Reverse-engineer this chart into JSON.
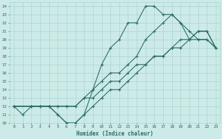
{
  "xlabel": "Humidex (Indice chaleur)",
  "background_color": "#cceae7",
  "grid_color": "#aad4d0",
  "line_color": "#2a6b63",
  "xlim": [
    -0.5,
    23.5
  ],
  "ylim": [
    10,
    24.5
  ],
  "xticks": [
    0,
    1,
    2,
    3,
    4,
    5,
    6,
    7,
    8,
    9,
    10,
    11,
    12,
    13,
    14,
    15,
    16,
    17,
    18,
    19,
    20,
    21,
    22,
    23
  ],
  "yticks": [
    10,
    11,
    12,
    13,
    14,
    15,
    16,
    17,
    18,
    19,
    20,
    21,
    22,
    23,
    24
  ],
  "lines": [
    {
      "x": [
        0,
        1,
        2,
        3,
        4,
        5,
        6,
        7,
        8,
        9,
        10,
        11,
        12,
        13,
        14,
        15,
        16,
        17,
        18,
        19,
        20,
        21,
        22,
        23
      ],
      "y": [
        12,
        11,
        12,
        12,
        12,
        11,
        10,
        10,
        11,
        14,
        17,
        19,
        20,
        22,
        22,
        24,
        24,
        23,
        23,
        22,
        20,
        20,
        20,
        19
      ]
    },
    {
      "x": [
        0,
        2,
        3,
        4,
        5,
        6,
        7,
        8,
        9,
        10,
        11,
        12,
        13,
        14,
        15,
        16,
        17,
        18,
        19,
        20,
        21,
        22,
        23
      ],
      "y": [
        12,
        12,
        12,
        12,
        12,
        12,
        12,
        13,
        14,
        15,
        16,
        16,
        17,
        18,
        20,
        21,
        22,
        23,
        22,
        21,
        20,
        20,
        19
      ]
    },
    {
      "x": [
        0,
        2,
        3,
        4,
        5,
        6,
        7,
        8,
        9,
        10,
        11,
        12,
        13,
        14,
        15,
        16,
        17,
        18,
        19,
        20,
        21,
        22,
        23
      ],
      "y": [
        12,
        12,
        12,
        12,
        12,
        12,
        12,
        13,
        13,
        14,
        15,
        15,
        16,
        17,
        17,
        18,
        18,
        19,
        19,
        20,
        21,
        21,
        19
      ]
    },
    {
      "x": [
        0,
        2,
        3,
        4,
        5,
        6,
        7,
        8,
        9,
        10,
        11,
        12,
        13,
        14,
        15,
        16,
        17,
        18,
        19,
        20,
        21,
        22,
        23
      ],
      "y": [
        12,
        12,
        12,
        12,
        11,
        10,
        10,
        11,
        12,
        13,
        14,
        14,
        15,
        16,
        17,
        18,
        18,
        19,
        20,
        20,
        21,
        21,
        19
      ]
    }
  ]
}
